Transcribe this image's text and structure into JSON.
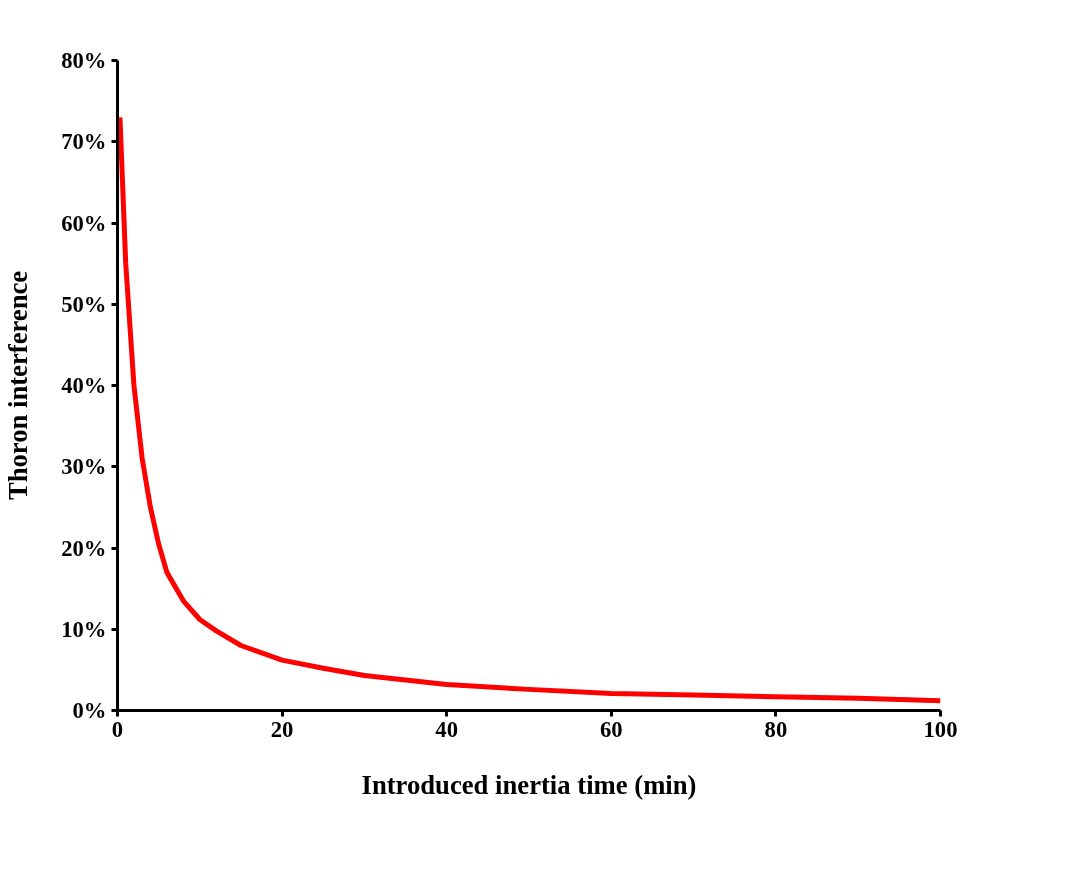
{
  "chart_data": {
    "type": "line",
    "xlabel": "Introduced inertia time (min)",
    "ylabel": "Thoron interference",
    "x": [
      0.3,
      1,
      2,
      3,
      4,
      5,
      6,
      8,
      10,
      12,
      15,
      20,
      25,
      30,
      40,
      50,
      60,
      70,
      80,
      90,
      100
    ],
    "series": [
      {
        "color": "#ff0000",
        "values": [
          73,
          55,
          40,
          31,
          25,
          20.5,
          17,
          13.5,
          11.2,
          9.8,
          8,
          6.2,
          5.2,
          4.3,
          3.2,
          2.6,
          2.1,
          1.9,
          1.7,
          1.5,
          1.2
        ]
      }
    ],
    "xlim": [
      0,
      100
    ],
    "xticks": [
      0,
      20,
      40,
      60,
      80,
      100
    ],
    "ylim": [
      0,
      80
    ],
    "yticks": [
      {
        "value": 0,
        "label": "0%"
      },
      {
        "value": 10,
        "label": "10%"
      },
      {
        "value": 20,
        "label": "20%"
      },
      {
        "value": 30,
        "label": "30%"
      },
      {
        "value": 40,
        "label": "40%"
      },
      {
        "value": 50,
        "label": "50%"
      },
      {
        "value": 60,
        "label": "60%"
      },
      {
        "value": 70,
        "label": "70%"
      },
      {
        "value": 80,
        "label": "80%"
      }
    ],
    "grid": false,
    "marker": "none",
    "line_style": "solid"
  }
}
